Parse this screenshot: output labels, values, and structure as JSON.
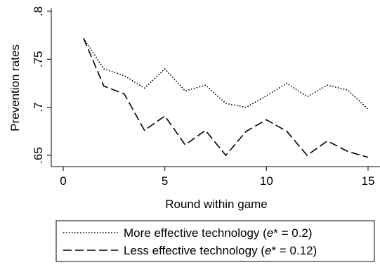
{
  "chart_data": {
    "type": "line",
    "title": "",
    "xlabel": "Round within game",
    "ylabel": "Prevention rates",
    "xlim": [
      0,
      15
    ],
    "ylim": [
      0.65,
      0.8
    ],
    "xticks": [
      0,
      5,
      10,
      15
    ],
    "xtick_labels": [
      "0",
      "5",
      "10",
      "15"
    ],
    "yticks": [
      0.65,
      0.7,
      0.75,
      0.8
    ],
    "ytick_labels": [
      ".65",
      ".7",
      ".75",
      ".8"
    ],
    "grid": false,
    "legend_position": "bottom",
    "x": [
      1,
      2,
      3,
      4,
      5,
      6,
      7,
      8,
      9,
      10,
      11,
      12,
      13,
      14,
      15
    ],
    "series": [
      {
        "name": "More effective technology (e* = 0.2)",
        "label_prefix": "More effective technology (",
        "label_symbol": "e",
        "label_suffix": "* = 0.2)",
        "line_style": "dotted",
        "color": "#000000",
        "values": [
          0.772,
          0.74,
          0.733,
          0.72,
          0.74,
          0.717,
          0.723,
          0.704,
          0.7,
          0.712,
          0.725,
          0.711,
          0.723,
          0.718,
          0.698
        ]
      },
      {
        "name": "Less effective technology (e* = 0.12)",
        "label_prefix": "Less effective technology (",
        "label_symbol": "e",
        "label_suffix": "* = 0.12)",
        "line_style": "dashed",
        "color": "#000000",
        "values": [
          0.772,
          0.722,
          0.714,
          0.676,
          0.691,
          0.661,
          0.676,
          0.65,
          0.675,
          0.687,
          0.675,
          0.65,
          0.665,
          0.654,
          0.648
        ]
      }
    ]
  }
}
